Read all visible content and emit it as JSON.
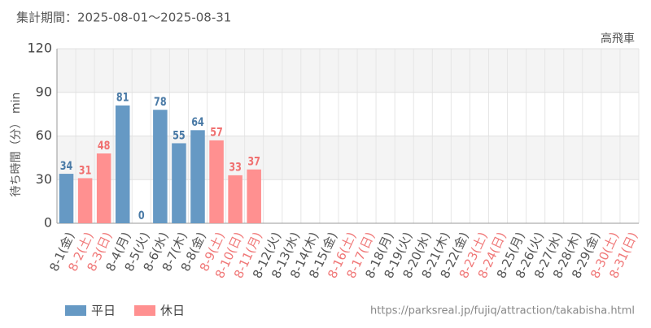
{
  "chart_data": {
    "type": "bar",
    "title": "集計期間：2025-08-01～2025-08-31",
    "subtitle": "高飛車",
    "y_label": "待ち時間（分） min",
    "source": "https://parksreal.jp/fujiq/attraction/takabisha.html",
    "categories": [
      "8-1(金)",
      "8-2(土)",
      "8-3(日)",
      "8-4(月)",
      "8-5(火)",
      "8-6(水)",
      "8-7(木)",
      "8-8(金)",
      "8-9(土)",
      "8-10(日)",
      "8-11(月)",
      "8-12(火)",
      "8-13(水)",
      "8-14(木)",
      "8-15(金)",
      "8-16(土)",
      "8-17(日)",
      "8-18(月)",
      "8-19(火)",
      "8-20(水)",
      "8-21(木)",
      "8-22(金)",
      "8-23(土)",
      "8-24(日)",
      "8-25(月)",
      "8-26(火)",
      "8-27(水)",
      "8-28(木)",
      "8-29(金)",
      "8-30(土)",
      "8-31(日)"
    ],
    "category_colors": [
      "#555555",
      "#f07878",
      "#f07878",
      "#555555",
      "#555555",
      "#555555",
      "#555555",
      "#555555",
      "#f07878",
      "#f07878",
      "#f07878",
      "#555555",
      "#555555",
      "#555555",
      "#555555",
      "#f07878",
      "#f07878",
      "#555555",
      "#555555",
      "#555555",
      "#555555",
      "#555555",
      "#f07878",
      "#f07878",
      "#555555",
      "#555555",
      "#555555",
      "#555555",
      "#555555",
      "#f07878",
      "#f07878"
    ],
    "series": [
      {
        "name": "平日",
        "color": "#6699c4",
        "label_color": "#4a7aa6",
        "values": [
          34,
          null,
          null,
          81,
          0,
          78,
          55,
          64,
          null,
          null,
          null,
          null,
          null,
          null,
          null,
          null,
          null,
          null,
          null,
          null,
          null,
          null,
          null,
          null,
          null,
          null,
          null,
          null,
          null,
          null,
          null
        ]
      },
      {
        "name": "休日",
        "color": "#ff9090",
        "label_color": "#f07070",
        "values": [
          null,
          31,
          48,
          null,
          null,
          null,
          null,
          null,
          57,
          33,
          37,
          null,
          null,
          null,
          null,
          null,
          null,
          null,
          null,
          null,
          null,
          null,
          null,
          null,
          null,
          null,
          null,
          null,
          null,
          null,
          null
        ]
      }
    ],
    "ylim": [
      0,
      120
    ],
    "yticks": [
      0,
      30,
      60,
      90,
      120
    ],
    "grid": true
  }
}
